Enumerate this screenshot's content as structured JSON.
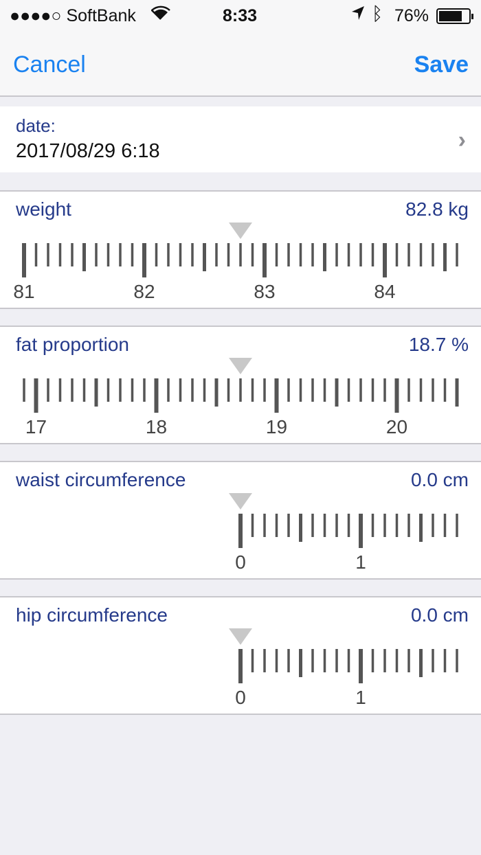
{
  "status_bar": {
    "carrier": "●●●●○ SoftBank",
    "time": "8:33",
    "battery": "76%",
    "icons": [
      "wifi-icon",
      "location-arrow-icon",
      "bluetooth-icon",
      "battery-icon"
    ],
    "battery_level": 0.76
  },
  "nav": {
    "cancel": "Cancel",
    "save": "Save"
  },
  "date": {
    "label": "date:",
    "value": "2017/08/29 6:18"
  },
  "measurements": [
    {
      "label": "weight",
      "value": "82.8 kg",
      "current": 82.8,
      "min": null
    },
    {
      "label": "fat proportion",
      "value": "18.7 %",
      "current": 18.7,
      "min": null
    },
    {
      "label": "waist circumference",
      "value": "0.0 cm",
      "current": 0.0,
      "min": 0
    },
    {
      "label": "hip circumference",
      "value": "0.0 cm",
      "current": 0.0,
      "min": 0
    }
  ],
  "colors": {
    "accent": "#1a82f0",
    "label": "#253a8a",
    "tick": "#555555",
    "pointer": "#c8c8c8"
  }
}
